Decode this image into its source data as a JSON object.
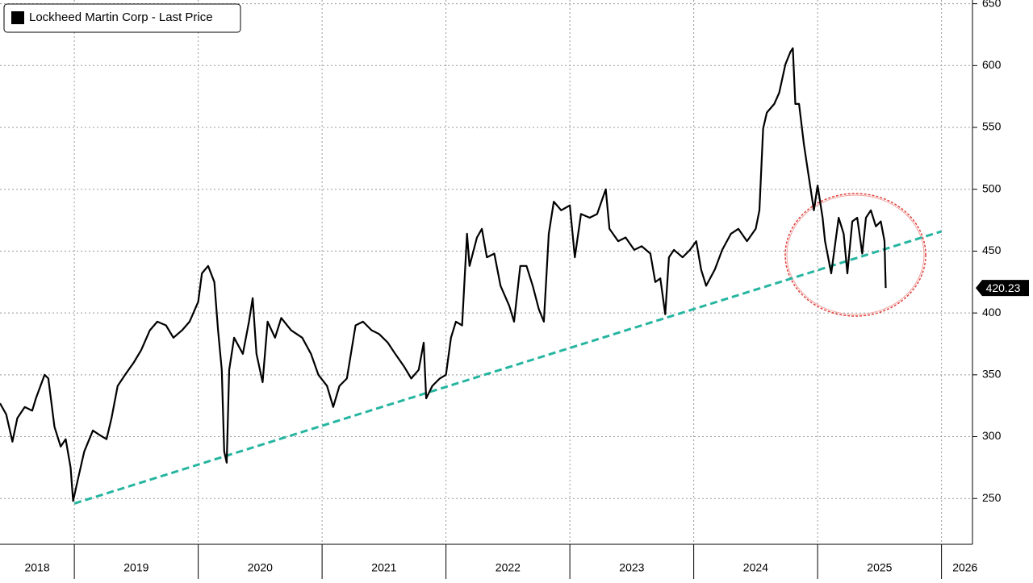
{
  "chart_data": {
    "type": "line",
    "xlim": [
      2018.4,
      2026.25
    ],
    "ylim": [
      213,
      653
    ],
    "yticks": [
      250,
      300,
      350,
      400,
      450,
      500,
      550,
      600,
      650
    ],
    "xticks": [
      {
        "value": 2018.7,
        "label": "2018"
      },
      {
        "value": 2019.5,
        "label": "2019"
      },
      {
        "value": 2020.5,
        "label": "2020"
      },
      {
        "value": 2021.5,
        "label": "2021"
      },
      {
        "value": 2022.5,
        "label": "2022"
      },
      {
        "value": 2023.5,
        "label": "2023"
      },
      {
        "value": 2024.5,
        "label": "2024"
      },
      {
        "value": 2025.5,
        "label": "2025"
      },
      {
        "value": 2026.19,
        "label": "2026"
      }
    ],
    "xgrid": [
      2019,
      2020,
      2021,
      2022,
      2023,
      2024,
      2025,
      2026
    ],
    "grid": true,
    "legend": "top-left",
    "series": [
      {
        "name": "Lockheed Martin Corp - Last Price",
        "color": "#000000",
        "x": [
          2018.4,
          2018.45,
          2018.5,
          2018.54,
          2018.6,
          2018.66,
          2018.69,
          2018.76,
          2018.79,
          2018.84,
          2018.89,
          2018.93,
          2018.97,
          2018.99,
          2019.03,
          2019.08,
          2019.15,
          2019.21,
          2019.26,
          2019.3,
          2019.35,
          2019.41,
          2019.48,
          2019.54,
          2019.61,
          2019.67,
          2019.74,
          2019.8,
          2019.87,
          2019.93,
          2020.0,
          2020.03,
          2020.08,
          2020.13,
          2020.16,
          2020.19,
          2020.21,
          2020.23,
          2020.25,
          2020.29,
          2020.36,
          2020.41,
          2020.44,
          2020.47,
          2020.52,
          2020.56,
          2020.62,
          2020.67,
          2020.75,
          2020.84,
          2020.91,
          2020.97,
          2021.04,
          2021.09,
          2021.14,
          2021.2,
          2021.27,
          2021.33,
          2021.4,
          2021.46,
          2021.53,
          2021.59,
          2021.66,
          2021.72,
          2021.78,
          2021.82,
          2021.84,
          2021.89,
          2021.95,
          2022.0,
          2022.04,
          2022.08,
          2022.13,
          2022.17,
          2022.19,
          2022.25,
          2022.29,
          2022.33,
          2022.39,
          2022.44,
          2022.51,
          2022.55,
          2022.6,
          2022.65,
          2022.7,
          2022.75,
          2022.79,
          2022.83,
          2022.87,
          2022.93,
          2023.0,
          2023.04,
          2023.09,
          2023.16,
          2023.22,
          2023.29,
          2023.32,
          2023.39,
          2023.45,
          2023.52,
          2023.58,
          2023.65,
          2023.69,
          2023.73,
          2023.77,
          2023.8,
          2023.84,
          2023.91,
          2023.97,
          2024.02,
          2024.06,
          2024.1,
          2024.17,
          2024.23,
          2024.3,
          2024.36,
          2024.43,
          2024.5,
          2024.53,
          2024.56,
          2024.59,
          2024.65,
          2024.69,
          2024.74,
          2024.78,
          2024.8,
          2024.82,
          2024.85,
          2024.89,
          2024.92,
          2024.97,
          2025.0,
          2025.04,
          2025.06,
          2025.11,
          2025.17,
          2025.21,
          2025.24,
          2025.28,
          2025.32,
          2025.36,
          2025.39,
          2025.43,
          2025.47,
          2025.51,
          2025.54,
          2025.55
        ],
        "values": [
          327,
          318,
          296,
          315,
          324,
          321,
          331,
          350,
          347,
          308,
          292,
          298,
          275,
          248,
          266,
          288,
          305,
          301,
          298,
          315,
          341,
          350,
          360,
          370,
          386,
          393,
          390,
          380,
          386,
          393,
          409,
          432,
          438,
          425,
          386,
          354,
          288,
          279,
          354,
          380,
          367,
          393,
          412,
          367,
          344,
          393,
          380,
          396,
          386,
          380,
          367,
          350,
          341,
          324,
          341,
          347,
          390,
          393,
          386,
          383,
          376,
          367,
          357,
          347,
          354,
          376,
          331,
          341,
          347,
          350,
          380,
          393,
          390,
          464,
          438,
          461,
          468,
          445,
          448,
          422,
          406,
          393,
          438,
          438,
          422,
          403,
          393,
          464,
          490,
          483,
          487,
          445,
          480,
          477,
          480,
          500,
          468,
          458,
          461,
          451,
          454,
          448,
          425,
          428,
          399,
          445,
          451,
          445,
          451,
          458,
          435,
          422,
          435,
          451,
          464,
          468,
          458,
          468,
          483,
          549,
          562,
          569,
          578,
          601,
          611,
          614,
          569,
          569,
          536,
          516,
          483,
          503,
          477,
          458,
          432,
          477,
          464,
          432,
          474,
          477,
          448,
          477,
          483,
          470,
          474,
          458,
          420.23
        ]
      }
    ],
    "trendline": {
      "x": [
        2019,
        2026
      ],
      "values": [
        246,
        466
      ],
      "color": "#26b5a0"
    }
  }
}
